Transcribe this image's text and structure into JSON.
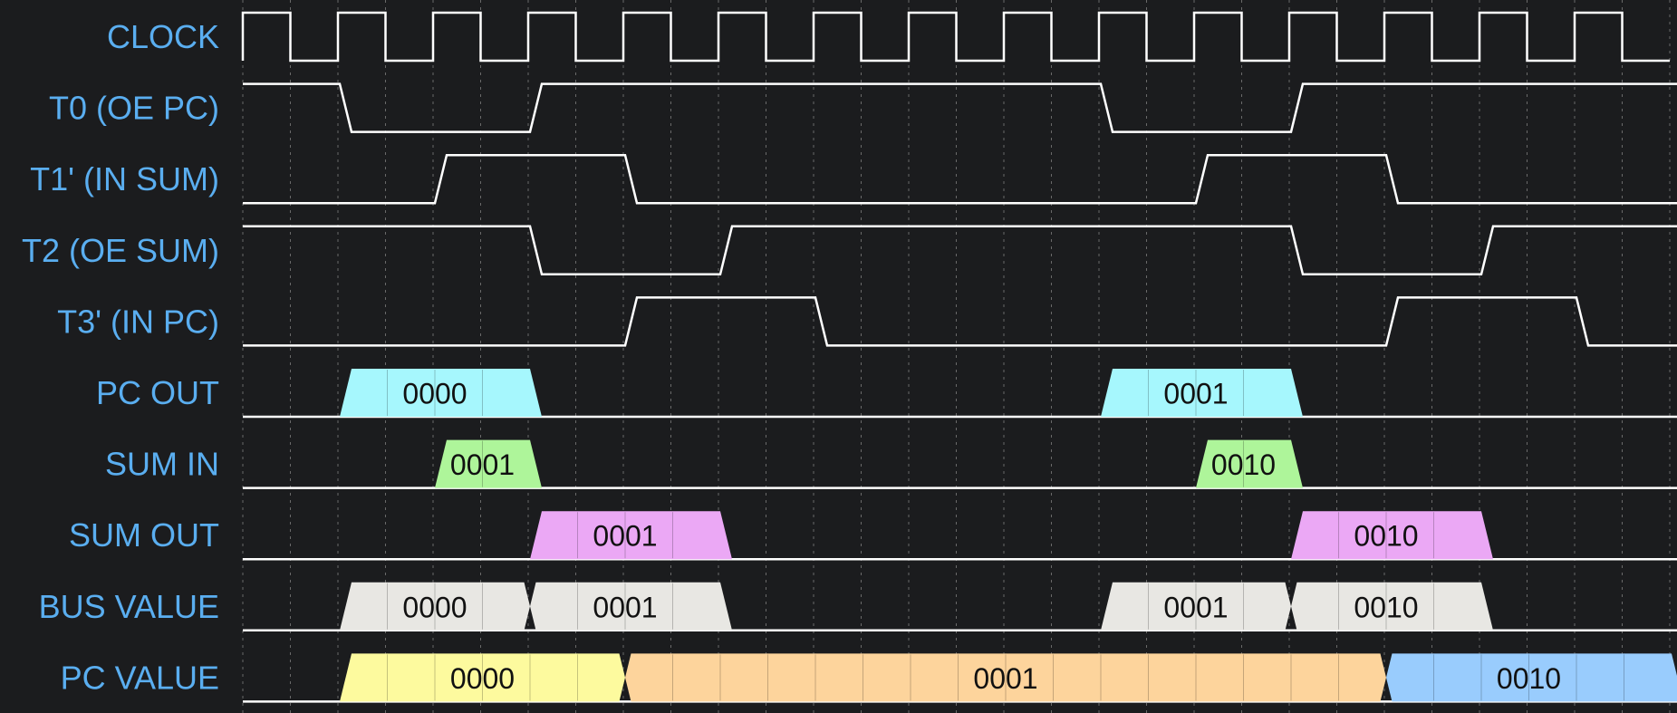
{
  "signals": [
    {
      "label": "CLOCK",
      "kind": "clock"
    },
    {
      "label": "T0 (OE PC)",
      "kind": "digital",
      "initial": 1,
      "events": [
        {
          "cycle": 1,
          "level": 0
        },
        {
          "cycle": 3,
          "level": 1
        },
        {
          "cycle": 9,
          "level": 0
        },
        {
          "cycle": 11,
          "level": 1
        }
      ]
    },
    {
      "label": "T1' (IN SUM)",
      "kind": "digital",
      "initial": 0,
      "events": [
        {
          "cycle": 2,
          "level": 1
        },
        {
          "cycle": 4,
          "level": 0
        },
        {
          "cycle": 10,
          "level": 1
        },
        {
          "cycle": 12,
          "level": 0
        }
      ]
    },
    {
      "label": "T2 (OE SUM)",
      "kind": "digital",
      "initial": 1,
      "events": [
        {
          "cycle": 3,
          "level": 0
        },
        {
          "cycle": 5,
          "level": 1
        },
        {
          "cycle": 11,
          "level": 0
        },
        {
          "cycle": 13,
          "level": 1
        }
      ]
    },
    {
      "label": "T3' (IN PC)",
      "kind": "digital",
      "initial": 0,
      "events": [
        {
          "cycle": 4,
          "level": 1
        },
        {
          "cycle": 6,
          "level": 0
        },
        {
          "cycle": 12,
          "level": 1
        },
        {
          "cycle": 14,
          "level": 0
        }
      ]
    },
    {
      "label": "PC OUT",
      "kind": "bus",
      "segments": [
        {
          "start": 1,
          "end": 3,
          "value": "0000",
          "color": "#a6f7fd"
        },
        {
          "start": 9,
          "end": 11,
          "value": "0001",
          "color": "#a6f7fd"
        }
      ]
    },
    {
      "label": "SUM IN",
      "kind": "bus",
      "segments": [
        {
          "start": 2,
          "end": 3,
          "value": "0001",
          "color": "#aef59a"
        },
        {
          "start": 10,
          "end": 11,
          "value": "0010",
          "color": "#aef59a"
        }
      ]
    },
    {
      "label": "SUM OUT",
      "kind": "bus",
      "segments": [
        {
          "start": 3,
          "end": 5,
          "value": "0001",
          "color": "#eba8f5"
        },
        {
          "start": 11,
          "end": 13,
          "value": "0010",
          "color": "#eba8f5"
        }
      ]
    },
    {
      "label": "BUS VALUE",
      "kind": "bus",
      "segments": [
        {
          "start": 1,
          "end": 3,
          "value": "0000",
          "color": "#e8e7e3"
        },
        {
          "start": 3,
          "end": 5,
          "value": "0001",
          "color": "#e8e7e3"
        },
        {
          "start": 9,
          "end": 11,
          "value": "0001",
          "color": "#e8e7e3"
        },
        {
          "start": 11,
          "end": 13,
          "value": "0010",
          "color": "#e8e7e3"
        }
      ]
    },
    {
      "label": "PC VALUE",
      "kind": "bus",
      "segments": [
        {
          "start": 1,
          "end": 4,
          "value": "0000",
          "color": "#fdfa9e"
        },
        {
          "start": 4,
          "end": 12,
          "value": "0001",
          "color": "#fdd49c"
        },
        {
          "start": 12,
          "end": 15,
          "value": "0010",
          "color": "#99ccfd"
        }
      ]
    }
  ],
  "clock_cycles": 15,
  "colors": {
    "background": "#1b1c1e",
    "label": "#5aaef0",
    "wave": "#ffffff",
    "grid": "#6a6a6a"
  }
}
